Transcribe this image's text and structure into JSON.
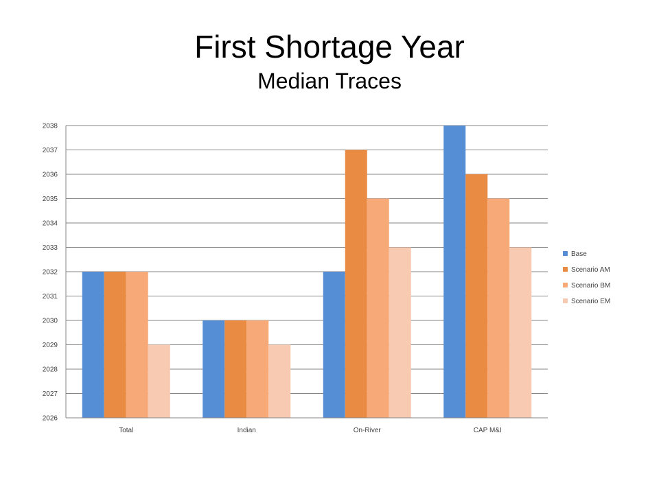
{
  "title": "First Shortage Year",
  "subtitle": "Median Traces",
  "chart_data": {
    "type": "bar",
    "categories": [
      "Total",
      "Indian",
      "On-River",
      "CAP M&I"
    ],
    "series": [
      {
        "name": "Base",
        "color": "#558ED5",
        "values": [
          2032,
          2030,
          2032,
          2038
        ]
      },
      {
        "name": "Scenario AM",
        "color": "#E98B43",
        "values": [
          2032,
          2030,
          2037,
          2036
        ]
      },
      {
        "name": "Scenario BM",
        "color": "#F7A978",
        "values": [
          2032,
          2030,
          2035,
          2035
        ]
      },
      {
        "name": "Scenario EM",
        "color": "#F9CAB2",
        "values": [
          2029,
          2029,
          2033,
          2033
        ]
      }
    ],
    "ylim": [
      2026,
      2038
    ],
    "yticks": [
      "2026",
      "2027",
      "2028",
      "2029",
      "2030",
      "2031",
      "2032",
      "2033",
      "2034",
      "2035",
      "2036",
      "2037",
      "2038"
    ],
    "grid": true,
    "legend_position": "right",
    "xlabel": "",
    "ylabel": ""
  }
}
